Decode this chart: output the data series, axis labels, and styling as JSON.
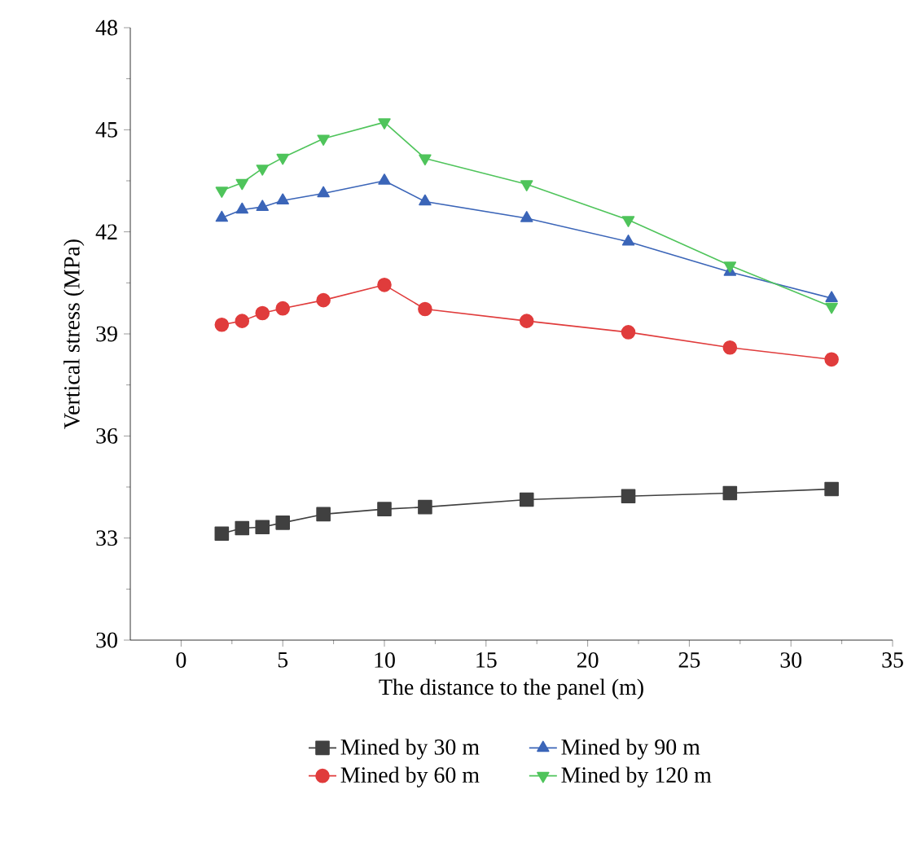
{
  "chart_data": {
    "type": "line",
    "xlabel": "The distance to the panel (m)",
    "ylabel": "Vertical stress (MPa)",
    "x": [
      2,
      3,
      4,
      5,
      7,
      10,
      12,
      17,
      22,
      27,
      32
    ],
    "series": [
      {
        "name": "Mined by 30 m",
        "color": "#404040",
        "marker": "square",
        "values": [
          33.13,
          33.29,
          33.32,
          33.45,
          33.7,
          33.85,
          33.91,
          34.13,
          34.23,
          34.32,
          34.44
        ]
      },
      {
        "name": "Mined by 60 m",
        "color": "#e03c3c",
        "marker": "circle",
        "values": [
          39.27,
          39.38,
          39.61,
          39.75,
          39.99,
          40.44,
          39.73,
          39.38,
          39.05,
          38.6,
          38.25
        ]
      },
      {
        "name": "Mined by 90 m",
        "color": "#3b65b8",
        "marker": "triangle",
        "values": [
          42.41,
          42.65,
          42.73,
          42.92,
          43.13,
          43.5,
          42.89,
          42.4,
          41.71,
          40.82,
          40.05
        ]
      },
      {
        "name": "Mined by 120 m",
        "color": "#4fc45b",
        "marker": "triangle-down",
        "values": [
          43.21,
          43.44,
          43.86,
          44.18,
          44.74,
          45.22,
          44.16,
          43.4,
          42.35,
          41.01,
          39.8
        ]
      }
    ],
    "xlim": [
      -2.5,
      35
    ],
    "ylim": [
      30,
      48
    ],
    "xticks": [
      0,
      5,
      10,
      15,
      20,
      25,
      30,
      35
    ],
    "yticks": [
      30,
      33,
      36,
      39,
      42,
      45,
      48
    ],
    "grid": false,
    "legend": "bottom",
    "line_style": "solid"
  }
}
